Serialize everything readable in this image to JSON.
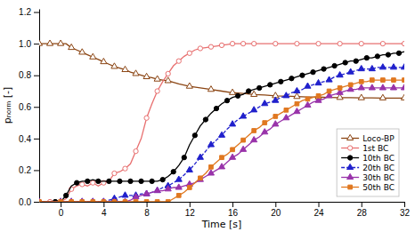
{
  "chart_data": {
    "type": "line",
    "xlabel": "Time [s]",
    "ylabel": "pₙₒᵣₘ [-]",
    "xlim": [
      -2,
      32
    ],
    "ylim": [
      0,
      1.22
    ],
    "xticks": [
      0,
      4,
      8,
      12,
      16,
      20,
      24,
      28,
      32
    ],
    "yticks": [
      {
        "value": 0,
        "label": "0.0"
      },
      0.2,
      0.4,
      0.6,
      0.8,
      {
        "value": 1,
        "label": "1.0"
      },
      1.2
    ],
    "grid": false,
    "legend": "lower right",
    "series": [
      {
        "name": "Loco-BP",
        "color": "#8B4513",
        "marker": "triangle-open",
        "line_style": "solid",
        "x": [
          -2,
          -1.5,
          -1,
          -0.5,
          0,
          0.5,
          1,
          1.5,
          2,
          2.5,
          3,
          3.5,
          4,
          4.5,
          5,
          5.5,
          6,
          6.5,
          7,
          7.5,
          8,
          8.5,
          9,
          9.5,
          10,
          11,
          12,
          13,
          14,
          15,
          16,
          17,
          18,
          19,
          20,
          21,
          22,
          23,
          24,
          25,
          26,
          27,
          28,
          29,
          30,
          31,
          32
        ],
        "values": [
          1.0,
          1.0,
          1.0,
          1.0,
          1.0,
          1.0,
          0.975,
          0.96,
          0.945,
          0.93,
          0.915,
          0.9,
          0.885,
          0.87,
          0.855,
          0.845,
          0.835,
          0.82,
          0.81,
          0.8,
          0.79,
          0.785,
          0.775,
          0.77,
          0.765,
          0.745,
          0.73,
          0.72,
          0.71,
          0.7,
          0.69,
          0.685,
          0.678,
          0.675,
          0.67,
          0.668,
          0.665,
          0.663,
          0.662,
          0.66,
          0.659,
          0.658,
          0.657,
          0.657,
          0.656,
          0.656,
          0.656
        ]
      },
      {
        "name": "1st BC",
        "color": "#E87070",
        "marker": "circle-open",
        "line_style": "solid",
        "x": [
          -2,
          -1.5,
          -1,
          -0.5,
          0,
          0.5,
          1,
          1.5,
          2,
          2.5,
          3,
          3.5,
          4,
          4.5,
          5,
          5.5,
          6,
          6.5,
          7,
          7.5,
          8,
          8.5,
          9,
          9.5,
          10,
          10.5,
          11,
          11.5,
          12,
          12.5,
          13,
          13.5,
          14,
          14.5,
          15,
          15.5,
          16,
          16.5,
          17,
          17.5,
          18,
          19,
          20,
          21,
          22,
          23,
          24,
          25,
          26,
          27,
          28,
          29,
          30,
          31,
          32
        ],
        "values": [
          0.0,
          0.0,
          0.0,
          0.0,
          0.0,
          0.02,
          0.08,
          0.1,
          0.11,
          0.1,
          0.12,
          0.1,
          0.12,
          0.13,
          0.18,
          0.19,
          0.21,
          0.24,
          0.32,
          0.4,
          0.53,
          0.62,
          0.7,
          0.76,
          0.81,
          0.86,
          0.89,
          0.92,
          0.94,
          0.96,
          0.97,
          0.975,
          0.98,
          0.985,
          0.99,
          0.995,
          1.0,
          1.0,
          1.0,
          1.0,
          1.0,
          1.0,
          1.0,
          1.0,
          1.0,
          1.0,
          1.0,
          1.0,
          1.0,
          1.0,
          1.0,
          1.0,
          1.0,
          1.0,
          1.0
        ]
      },
      {
        "name": "10th BC",
        "color": "#000000",
        "marker": "circle",
        "line_style": "solid",
        "x": [
          -2,
          -1,
          -0.5,
          0,
          0.5,
          1,
          1.5,
          2,
          2.5,
          3,
          3.5,
          4,
          4.5,
          5,
          5.5,
          6,
          6.5,
          7,
          7.5,
          8,
          8.5,
          9,
          9.5,
          10,
          10.5,
          11,
          11.5,
          12,
          12.5,
          13,
          13.5,
          14,
          14.5,
          15,
          15.5,
          16,
          16.5,
          17,
          17.5,
          18,
          18.5,
          19,
          19.5,
          20,
          20.5,
          21,
          21.5,
          22,
          22.5,
          23,
          23.5,
          24,
          24.5,
          25,
          25.5,
          26,
          26.5,
          27,
          27.5,
          28,
          28.5,
          29,
          29.5,
          30,
          30.5,
          31,
          31.5,
          32
        ],
        "values": [
          0.0,
          0.0,
          0.0,
          0.0,
          0.04,
          0.1,
          0.12,
          0.13,
          0.13,
          0.14,
          0.13,
          0.13,
          0.13,
          0.13,
          0.13,
          0.13,
          0.13,
          0.13,
          0.13,
          0.13,
          0.13,
          0.13,
          0.14,
          0.16,
          0.19,
          0.23,
          0.28,
          0.36,
          0.42,
          0.48,
          0.52,
          0.56,
          0.59,
          0.62,
          0.64,
          0.66,
          0.67,
          0.68,
          0.7,
          0.71,
          0.72,
          0.73,
          0.74,
          0.75,
          0.76,
          0.77,
          0.78,
          0.79,
          0.8,
          0.81,
          0.82,
          0.83,
          0.84,
          0.85,
          0.86,
          0.87,
          0.88,
          0.89,
          0.89,
          0.9,
          0.91,
          0.91,
          0.92,
          0.93,
          0.93,
          0.94,
          0.94,
          0.95
        ]
      },
      {
        "name": "20th BC",
        "color": "#2020CC",
        "marker": "triangle",
        "line_style": "dashed",
        "x": [
          -2,
          -1,
          0,
          0.5,
          1,
          1.5,
          2,
          2.5,
          3,
          3.5,
          4,
          4.5,
          5,
          5.5,
          6,
          6.5,
          7,
          7.5,
          8,
          8.5,
          9,
          9.5,
          10,
          10.5,
          11,
          11.5,
          12,
          12.5,
          13,
          13.5,
          14,
          14.5,
          15,
          15.5,
          16,
          16.5,
          17,
          17.5,
          18,
          18.5,
          19,
          19.5,
          20,
          20.5,
          21,
          21.5,
          22,
          22.5,
          23,
          23.5,
          24,
          24.5,
          25,
          25.5,
          26,
          26.5,
          27,
          27.5,
          28,
          28.5,
          29,
          29.5,
          30,
          30.5,
          31,
          31.5,
          32
        ],
        "values": [
          0.0,
          0.0,
          0.0,
          0.0,
          0.0,
          0.0,
          0.0,
          0.0,
          0.0,
          0.0,
          0.0,
          0.01,
          0.02,
          0.03,
          0.04,
          0.04,
          0.04,
          0.05,
          0.05,
          0.06,
          0.07,
          0.09,
          0.1,
          0.12,
          0.14,
          0.17,
          0.2,
          0.24,
          0.28,
          0.32,
          0.36,
          0.39,
          0.42,
          0.46,
          0.49,
          0.52,
          0.54,
          0.56,
          0.58,
          0.6,
          0.62,
          0.63,
          0.64,
          0.66,
          0.67,
          0.69,
          0.7,
          0.71,
          0.73,
          0.74,
          0.75,
          0.76,
          0.77,
          0.79,
          0.8,
          0.81,
          0.82,
          0.83,
          0.84,
          0.84,
          0.84,
          0.85,
          0.85,
          0.85,
          0.85,
          0.85,
          0.85
        ]
      },
      {
        "name": "30th BC",
        "color": "#9933AA",
        "marker": "triangle",
        "line_style": "solid",
        "x": [
          -2,
          -1,
          0,
          0.5,
          1,
          1.5,
          2,
          2.5,
          3,
          3.5,
          4,
          4.5,
          5,
          5.5,
          6,
          6.5,
          7,
          7.5,
          8,
          8.5,
          9,
          9.5,
          10,
          10.5,
          11,
          11.5,
          12,
          12.5,
          13,
          13.5,
          14,
          14.5,
          15,
          15.5,
          16,
          16.5,
          17,
          17.5,
          18,
          18.5,
          19,
          19.5,
          20,
          20.5,
          21,
          21.5,
          22,
          22.5,
          23,
          23.5,
          24,
          24.5,
          25,
          25.5,
          26,
          26.5,
          27,
          27.5,
          28,
          28.5,
          29,
          29.5,
          30,
          30.5,
          31,
          31.5,
          32
        ],
        "values": [
          0.0,
          0.0,
          0.0,
          0.0,
          0.0,
          0.0,
          0.0,
          0.0,
          0.0,
          0.0,
          0.0,
          0.0,
          0.0,
          0.0,
          0.0,
          0.01,
          0.03,
          0.04,
          0.05,
          0.06,
          0.07,
          0.07,
          0.08,
          0.09,
          0.09,
          0.1,
          0.11,
          0.12,
          0.14,
          0.16,
          0.18,
          0.2,
          0.22,
          0.25,
          0.28,
          0.3,
          0.33,
          0.36,
          0.39,
          0.41,
          0.44,
          0.46,
          0.49,
          0.51,
          0.53,
          0.55,
          0.57,
          0.59,
          0.61,
          0.63,
          0.64,
          0.65,
          0.67,
          0.68,
          0.69,
          0.7,
          0.71,
          0.71,
          0.72,
          0.72,
          0.72,
          0.72,
          0.72,
          0.72,
          0.72,
          0.72,
          0.72
        ]
      },
      {
        "name": "50th BC",
        "color": "#E07820",
        "marker": "square",
        "line_style": "solid",
        "x": [
          -2,
          -1,
          0,
          0.5,
          1,
          1.5,
          2,
          2.5,
          3,
          3.5,
          4,
          4.5,
          5,
          5.5,
          6,
          6.5,
          7,
          7.5,
          8,
          8.5,
          9,
          9.5,
          10,
          10.5,
          11,
          11.5,
          12,
          12.5,
          13,
          13.5,
          14,
          14.5,
          15,
          15.5,
          16,
          16.5,
          17,
          17.5,
          18,
          18.5,
          19,
          19.5,
          20,
          20.5,
          21,
          21.5,
          22,
          22.5,
          23,
          23.5,
          24,
          24.5,
          25,
          25.5,
          26,
          26.5,
          27,
          27.5,
          28,
          28.5,
          29,
          29.5,
          30,
          30.5,
          31,
          31.5,
          32
        ],
        "values": [
          0.0,
          0.0,
          0.0,
          0.0,
          0.0,
          0.0,
          0.0,
          0.0,
          0.0,
          0.0,
          0.0,
          0.0,
          0.0,
          0.0,
          0.0,
          0.0,
          0.0,
          0.0,
          0.0,
          0.0,
          0.0,
          0.0,
          0.0,
          0.02,
          0.04,
          0.06,
          0.09,
          0.12,
          0.15,
          0.18,
          0.22,
          0.25,
          0.28,
          0.3,
          0.33,
          0.36,
          0.39,
          0.42,
          0.45,
          0.47,
          0.5,
          0.52,
          0.54,
          0.56,
          0.58,
          0.6,
          0.62,
          0.64,
          0.65,
          0.66,
          0.67,
          0.68,
          0.7,
          0.71,
          0.72,
          0.73,
          0.74,
          0.75,
          0.76,
          0.76,
          0.77,
          0.77,
          0.77,
          0.77,
          0.77,
          0.77,
          0.77
        ]
      }
    ]
  }
}
